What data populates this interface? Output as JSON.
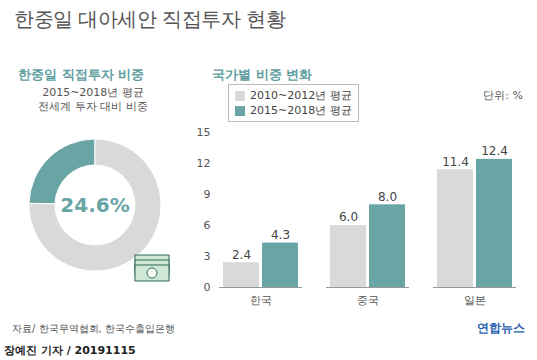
{
  "title": "한중일 대아세안 직접투자 현황",
  "source": "자료/ 한국무역협회, 한국수출입은행",
  "credit": "연합뉴스",
  "byline": "장예진 기자 / 20191115",
  "chart_data": [
    {
      "type": "pie",
      "title": "한중일 직접투자 비중",
      "subtitle": [
        "2015~2018년 평균",
        "전세계 투자 대비 비중"
      ],
      "values": [
        24.6,
        75.4
      ],
      "colors": [
        "#6aa5a6",
        "#d9d9d9"
      ],
      "value_labels": [
        "24.6%",
        null
      ],
      "data_labels": true
    },
    {
      "type": "bar",
      "title": "국가별 비중 변화",
      "unit_label": "단위: %",
      "categories": [
        "한국",
        "중국",
        "일본"
      ],
      "series": [
        {
          "name": "2010~2012년 평균",
          "color": "#d9d9d9",
          "values": [
            2.4,
            6.0,
            11.4
          ],
          "value_labels": [
            "2.4",
            "6.0",
            "11.4"
          ]
        },
        {
          "name": "2015~2018년 평균",
          "color": "#6aa5a6",
          "values": [
            4.3,
            8.0,
            12.4
          ],
          "value_labels": [
            "4.3",
            "8.0",
            "12.4"
          ]
        }
      ],
      "ylim": [
        0,
        15
      ],
      "yticks": [
        0,
        3,
        6,
        9,
        12,
        15
      ],
      "grid": false,
      "legend": "top-left",
      "data_labels": true
    }
  ]
}
